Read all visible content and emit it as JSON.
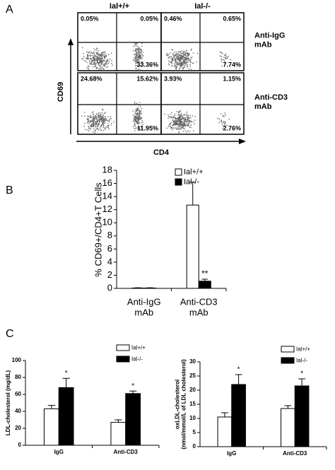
{
  "chart_data": [
    {
      "type": "flow-quadrant",
      "panel": "A",
      "columns": [
        "Ial+/+",
        "Ial-/-"
      ],
      "rows": [
        "Anti-IgG\nmAb",
        "Anti-CD3\nmAb"
      ],
      "x_label": "CD4",
      "y_label": "CD69",
      "plots": [
        {
          "values": [
            0.05,
            0.05,
            33.36
          ],
          "value_labels": [
            "0.05%",
            "0.05%",
            "33.36%"
          ]
        },
        {
          "values": [
            0.46,
            0.65,
            7.74
          ],
          "value_labels": [
            "0.46%",
            "0.65%",
            "7.74%"
          ]
        },
        {
          "values": [
            24.68,
            15.62,
            11.95
          ],
          "value_labels": [
            "24.68%",
            "15.62%",
            "11.95%"
          ]
        },
        {
          "values": [
            3.93,
            1.15,
            2.76
          ],
          "value_labels": [
            "3.93%",
            "1.15%",
            "2.76%"
          ]
        }
      ]
    },
    {
      "type": "bar",
      "panel": "B",
      "y_label": "% CD69+/CD4+T Cells",
      "categories": [
        "Anti-IgG\nmAb",
        "Anti-CD3\nmAb"
      ],
      "series": [
        {
          "name": "Ial+/+",
          "color": "#ffffff",
          "values": [
            0.05,
            12.7
          ],
          "errors": [
            0.05,
            3.5
          ],
          "value_annotations": [
            null,
            null
          ]
        },
        {
          "name": "Ial-/-",
          "color": "#000000",
          "values": [
            0.05,
            1.1
          ],
          "errors": [
            0.05,
            0.3
          ],
          "value_annotations": [
            null,
            "**"
          ]
        }
      ],
      "ylim": [
        0,
        18
      ],
      "yticks": [
        0,
        2,
        4,
        6,
        8,
        10,
        12,
        14,
        16,
        18
      ],
      "legend": "upper right"
    },
    {
      "type": "bar",
      "panel": "C",
      "y_label": "LDL-cholesterol (mg/dL)",
      "categories": [
        "IgG",
        "Anti-CD3"
      ],
      "series": [
        {
          "name": "Ial+/+",
          "color": "#ffffff",
          "values": [
            43,
            27
          ],
          "errors": [
            4,
            3
          ],
          "value_annotations": [
            null,
            null
          ]
        },
        {
          "name": "Ial-/-",
          "color": "#000000",
          "values": [
            68,
            61
          ],
          "errors": [
            11,
            3
          ],
          "value_annotations": [
            "*",
            "*"
          ]
        }
      ],
      "ylim": [
        0,
        100
      ],
      "yticks": [
        0,
        20,
        40,
        60,
        80,
        100
      ],
      "legend": "upper right"
    },
    {
      "type": "bar",
      "y_label": "oxLDL-cholesterol\n(nmol/mmol/L of LDL cholesterol)",
      "categories": [
        "IgG",
        "Anti-CD3"
      ],
      "series": [
        {
          "name": "Ial+/+",
          "color": "#ffffff",
          "values": [
            10.5,
            13.5
          ],
          "errors": [
            1.5,
            1
          ],
          "value_annotations": [
            null,
            null
          ]
        },
        {
          "name": "Ial-/-",
          "color": "#000000",
          "values": [
            22,
            21.5
          ],
          "errors": [
            3.5,
            2.5
          ],
          "value_annotations": [
            "*",
            "*"
          ]
        }
      ],
      "ylim": [
        0,
        30
      ],
      "yticks": [
        0,
        5,
        10,
        15,
        20,
        25,
        30
      ],
      "legend": "upper right"
    }
  ]
}
